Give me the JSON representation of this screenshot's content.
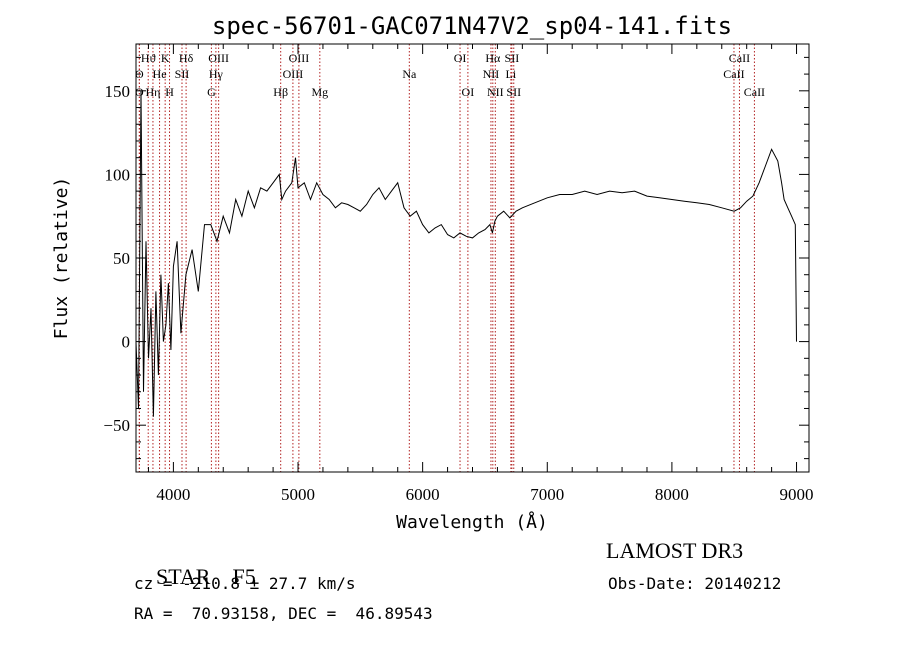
{
  "chart_data": {
    "type": "line",
    "title": "spec-56701-GAC071N47V2_sp04-141.fits",
    "xlabel": "Wavelength (Å)",
    "ylabel": "Flux (relative)",
    "xlim": [
      3700,
      9100
    ],
    "ylim": [
      -78,
      178
    ],
    "xticks": [
      4000,
      5000,
      6000,
      7000,
      8000,
      9000
    ],
    "yticks": [
      -50,
      0,
      50,
      100,
      150
    ],
    "series": [
      {
        "name": "flux",
        "x": [
          3700,
          3720,
          3740,
          3760,
          3780,
          3800,
          3820,
          3840,
          3860,
          3880,
          3900,
          3920,
          3940,
          3960,
          3980,
          4000,
          4030,
          4060,
          4100,
          4150,
          4200,
          4250,
          4300,
          4350,
          4400,
          4450,
          4500,
          4550,
          4600,
          4650,
          4700,
          4750,
          4800,
          4850,
          4870,
          4900,
          4950,
          4980,
          5000,
          5050,
          5100,
          5150,
          5200,
          5250,
          5300,
          5350,
          5400,
          5450,
          5500,
          5550,
          5600,
          5650,
          5700,
          5750,
          5800,
          5850,
          5900,
          5950,
          6000,
          6050,
          6100,
          6150,
          6200,
          6250,
          6300,
          6350,
          6400,
          6450,
          6500,
          6540,
          6560,
          6580,
          6600,
          6650,
          6700,
          6750,
          6800,
          6900,
          7000,
          7100,
          7200,
          7300,
          7400,
          7500,
          7600,
          7700,
          7800,
          7900,
          8000,
          8100,
          8200,
          8300,
          8400,
          8500,
          8550,
          8600,
          8650,
          8700,
          8750,
          8800,
          8850,
          8880,
          8900,
          8930,
          8960,
          8990,
          9000
        ],
        "y": [
          0,
          -40,
          150,
          -30,
          60,
          -10,
          20,
          -45,
          30,
          -20,
          40,
          0,
          10,
          35,
          -5,
          45,
          60,
          5,
          40,
          55,
          30,
          70,
          70,
          60,
          75,
          65,
          85,
          75,
          90,
          80,
          92,
          90,
          95,
          100,
          85,
          90,
          95,
          110,
          92,
          95,
          85,
          95,
          88,
          85,
          80,
          83,
          82,
          80,
          78,
          82,
          88,
          92,
          85,
          90,
          95,
          80,
          75,
          78,
          70,
          65,
          68,
          70,
          64,
          62,
          65,
          63,
          62,
          65,
          67,
          70,
          65,
          72,
          75,
          78,
          74,
          78,
          80,
          83,
          86,
          88,
          88,
          90,
          88,
          90,
          89,
          90,
          87,
          86,
          85,
          84,
          83,
          82,
          80,
          78,
          80,
          84,
          87,
          95,
          105,
          115,
          108,
          95,
          85,
          80,
          75,
          70,
          0
        ]
      }
    ],
    "lines": [
      {
        "label": "Hϑ",
        "x": 3798,
        "row": 1
      },
      {
        "label": "O",
        "x": 3727,
        "row": 2
      },
      {
        "label": "O",
        "x": 3727,
        "row": 3
      },
      {
        "label": "K",
        "x": 3934,
        "row": 1
      },
      {
        "label": "He",
        "x": 3889,
        "row": 2
      },
      {
        "label": "Hη",
        "x": 3836,
        "row": 3
      },
      {
        "label": "H",
        "x": 3969,
        "row": 3
      },
      {
        "label": "Hδ",
        "x": 4102,
        "row": 1
      },
      {
        "label": "SII",
        "x": 4069,
        "row": 2
      },
      {
        "label": "OIII",
        "x": 4363,
        "row": 1
      },
      {
        "label": "Hγ",
        "x": 4341,
        "row": 2
      },
      {
        "label": "G",
        "x": 4305,
        "row": 3
      },
      {
        "label": "Hβ",
        "x": 4861,
        "row": 3
      },
      {
        "label": "OIII",
        "x": 5007,
        "row": 1
      },
      {
        "label": "OIII",
        "x": 4959,
        "row": 2
      },
      {
        "label": "Mg",
        "x": 5175,
        "row": 3
      },
      {
        "label": "Na",
        "x": 5893,
        "row": 2
      },
      {
        "label": "OI",
        "x": 6300,
        "row": 1
      },
      {
        "label": "OI",
        "x": 6363,
        "row": 3
      },
      {
        "label": "Hα",
        "x": 6563,
        "row": 1
      },
      {
        "label": "NII",
        "x": 6548,
        "row": 2
      },
      {
        "label": "NII",
        "x": 6583,
        "row": 3
      },
      {
        "label": "SII",
        "x": 6716,
        "row": 1
      },
      {
        "label": "Li",
        "x": 6708,
        "row": 2
      },
      {
        "label": "SII",
        "x": 6731,
        "row": 3
      },
      {
        "label": "CaII",
        "x": 8542,
        "row": 1
      },
      {
        "label": "CaII",
        "x": 8498,
        "row": 2
      },
      {
        "label": "CaII",
        "x": 8662,
        "row": 3
      }
    ]
  },
  "info": {
    "class": "STAR",
    "subclass": "F5",
    "survey": "LAMOST DR3",
    "cz": "cz = -210.8 ± 27.7 km/s",
    "obs_date": "Obs-Date: 20140212",
    "radec": "RA =  70.93158, DEC =  46.89543"
  }
}
